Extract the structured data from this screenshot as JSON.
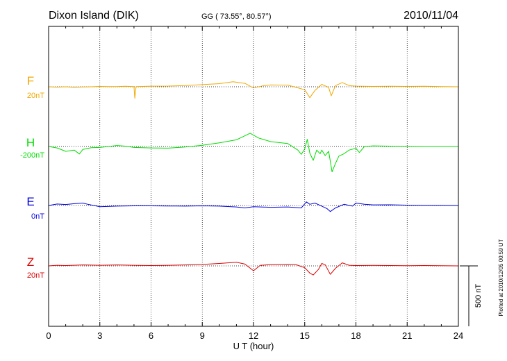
{
  "header": {
    "station": "Dixon Island (DIK)",
    "coords": "GG ( 73.55°,  80.57°)",
    "date": "2010/11/04"
  },
  "footer_note": "Plotted at 2010/12/05 00:59 UT",
  "colors": {
    "F": "#f0a800",
    "H": "#00dd00",
    "E": "#0000dd",
    "Z": "#dd0000",
    "axis": "#000000"
  },
  "chart_data": {
    "type": "line",
    "title": "Dixon Island (DIK)",
    "xlabel": "U T (hour)",
    "xlim": [
      0,
      24
    ],
    "xticks": [
      0,
      3,
      6,
      9,
      12,
      15,
      18,
      21,
      24
    ],
    "tick_labels": [
      "0",
      "3",
      "6",
      "9",
      "12",
      "15",
      "18",
      "21",
      "24"
    ],
    "grid": true,
    "scale_bar": {
      "label": "500 nT",
      "value_nT": 500
    },
    "series": [
      {
        "name": "F",
        "label": "F",
        "baseline_label": "20nT",
        "color_key": "F",
        "points": [
          [
            0,
            0
          ],
          [
            0.5,
            -3
          ],
          [
            1,
            0
          ],
          [
            1.5,
            -4
          ],
          [
            2,
            -2
          ],
          [
            2.5,
            0
          ],
          [
            3,
            3
          ],
          [
            3.5,
            1
          ],
          [
            4,
            2
          ],
          [
            4.5,
            4
          ],
          [
            5,
            2
          ],
          [
            5.05,
            -95
          ],
          [
            5.12,
            2
          ],
          [
            5.5,
            3
          ],
          [
            6,
            5
          ],
          [
            7,
            6
          ],
          [
            8,
            10
          ],
          [
            9,
            18
          ],
          [
            10,
            26
          ],
          [
            10.8,
            42
          ],
          [
            11.5,
            28
          ],
          [
            12,
            -10
          ],
          [
            12.6,
            10
          ],
          [
            13,
            15
          ],
          [
            14,
            14
          ],
          [
            14.5,
            -5
          ],
          [
            15,
            -25
          ],
          [
            15.3,
            -90
          ],
          [
            15.6,
            -30
          ],
          [
            16,
            20
          ],
          [
            16.4,
            -5
          ],
          [
            16.55,
            -75
          ],
          [
            16.8,
            10
          ],
          [
            17.2,
            35
          ],
          [
            17.6,
            10
          ],
          [
            18,
            5
          ],
          [
            19,
            3
          ],
          [
            20,
            4
          ],
          [
            21,
            3
          ],
          [
            22,
            4
          ],
          [
            23,
            2
          ],
          [
            24,
            0
          ]
        ]
      },
      {
        "name": "H",
        "label": "H",
        "baseline_label": "-200nT",
        "color_key": "H",
        "points": [
          [
            0,
            0
          ],
          [
            0.5,
            -12
          ],
          [
            1,
            -40
          ],
          [
            1.5,
            -30
          ],
          [
            1.8,
            -62
          ],
          [
            2,
            -25
          ],
          [
            2.5,
            -10
          ],
          [
            3,
            -8
          ],
          [
            3.5,
            0
          ],
          [
            4,
            8
          ],
          [
            4.5,
            3
          ],
          [
            5,
            -8
          ],
          [
            6,
            -12
          ],
          [
            7,
            -14
          ],
          [
            8,
            -4
          ],
          [
            9,
            10
          ],
          [
            10,
            30
          ],
          [
            11,
            55
          ],
          [
            11.8,
            110
          ],
          [
            12.3,
            70
          ],
          [
            13,
            40
          ],
          [
            14,
            25
          ],
          [
            14.6,
            -30
          ],
          [
            14.8,
            -65
          ],
          [
            15,
            -20
          ],
          [
            15.15,
            60
          ],
          [
            15.3,
            -55
          ],
          [
            15.5,
            -115
          ],
          [
            15.7,
            -30
          ],
          [
            15.9,
            -60
          ],
          [
            16,
            -30
          ],
          [
            16.2,
            -75
          ],
          [
            16.4,
            -40
          ],
          [
            16.6,
            -210
          ],
          [
            16.8,
            -140
          ],
          [
            17,
            -80
          ],
          [
            17.3,
            -60
          ],
          [
            17.6,
            -30
          ],
          [
            18,
            -15
          ],
          [
            18.2,
            -50
          ],
          [
            18.5,
            0
          ],
          [
            19,
            5
          ],
          [
            20,
            3
          ],
          [
            21,
            2
          ],
          [
            22,
            0
          ],
          [
            23,
            0
          ],
          [
            24,
            0
          ]
        ]
      },
      {
        "name": "E",
        "label": "E",
        "baseline_label": "0nT",
        "color_key": "E",
        "points": [
          [
            0,
            0
          ],
          [
            0.5,
            12
          ],
          [
            1,
            8
          ],
          [
            1.5,
            15
          ],
          [
            2,
            20
          ],
          [
            2.3,
            10
          ],
          [
            3,
            -10
          ],
          [
            4,
            -5
          ],
          [
            5,
            -3
          ],
          [
            6,
            -3
          ],
          [
            7,
            -4
          ],
          [
            8,
            -5
          ],
          [
            9,
            -3
          ],
          [
            10,
            -5
          ],
          [
            11,
            -12
          ],
          [
            11.5,
            -20
          ],
          [
            12,
            -10
          ],
          [
            13,
            -15
          ],
          [
            14,
            -12
          ],
          [
            14.8,
            -20
          ],
          [
            15.1,
            30
          ],
          [
            15.3,
            10
          ],
          [
            15.6,
            20
          ],
          [
            16,
            -5
          ],
          [
            16.3,
            -25
          ],
          [
            16.5,
            -50
          ],
          [
            16.8,
            -20
          ],
          [
            17.3,
            10
          ],
          [
            17.8,
            -5
          ],
          [
            18,
            20
          ],
          [
            18.5,
            10
          ],
          [
            19,
            5
          ],
          [
            20,
            6
          ],
          [
            21,
            3
          ],
          [
            22,
            2
          ],
          [
            23,
            1
          ],
          [
            24,
            0
          ]
        ]
      },
      {
        "name": "Z",
        "label": "Z",
        "baseline_label": "20nT",
        "color_key": "Z",
        "points": [
          [
            0,
            0
          ],
          [
            0.5,
            5
          ],
          [
            1,
            3
          ],
          [
            2,
            8
          ],
          [
            3,
            5
          ],
          [
            4,
            8
          ],
          [
            5,
            5
          ],
          [
            6,
            3
          ],
          [
            7,
            5
          ],
          [
            8,
            8
          ],
          [
            9,
            12
          ],
          [
            10,
            20
          ],
          [
            11,
            30
          ],
          [
            11.5,
            15
          ],
          [
            12,
            -40
          ],
          [
            12.4,
            5
          ],
          [
            13,
            10
          ],
          [
            14,
            12
          ],
          [
            14.5,
            10
          ],
          [
            15,
            -15
          ],
          [
            15.3,
            -60
          ],
          [
            15.5,
            -75
          ],
          [
            15.8,
            -30
          ],
          [
            16,
            20
          ],
          [
            16.2,
            10
          ],
          [
            16.5,
            -70
          ],
          [
            16.8,
            -20
          ],
          [
            17.2,
            25
          ],
          [
            17.6,
            5
          ],
          [
            18,
            3
          ],
          [
            19,
            4
          ],
          [
            20,
            3
          ],
          [
            21,
            2
          ],
          [
            22,
            3
          ],
          [
            23,
            1
          ],
          [
            24,
            0
          ]
        ]
      }
    ]
  }
}
